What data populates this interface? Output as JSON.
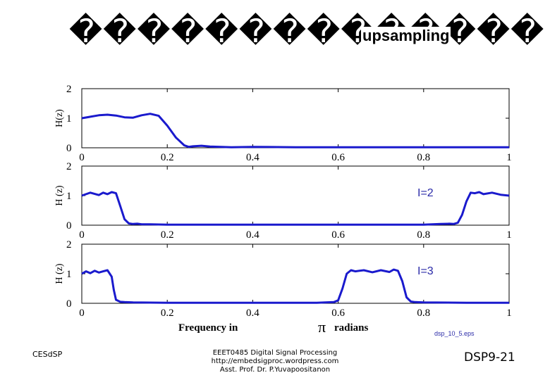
{
  "slide": {
    "title_glyphs": "��������������",
    "title_word": "upsampling",
    "footer_left": "CESdSP",
    "footer_center": [
      "EEET0485 Digital Signal Processing",
      "http://embedsigproc.wordpress.com",
      "Asst. Prof. Dr. P.Yuvapoositanon"
    ],
    "footer_right": "DSP9-21",
    "source_label": "dsp_10_5.eps"
  },
  "chart_data": [
    {
      "type": "line",
      "ylabel": "H(z)",
      "annotation": "",
      "xlim": [
        0,
        1
      ],
      "ylim": [
        0,
        2
      ],
      "xticks": [
        "0",
        "0.2",
        "0.4",
        "0.6",
        "0.8",
        "1"
      ],
      "yticks": [
        "0",
        "1",
        "2"
      ],
      "series_color": "#1a1acd",
      "x": [
        0,
        0.02,
        0.04,
        0.06,
        0.08,
        0.1,
        0.12,
        0.14,
        0.16,
        0.18,
        0.2,
        0.22,
        0.24,
        0.25,
        0.26,
        0.28,
        0.3,
        0.35,
        0.4,
        0.5,
        0.6,
        0.7,
        0.8,
        0.9,
        1.0
      ],
      "y": [
        1.0,
        1.05,
        1.1,
        1.12,
        1.09,
        1.03,
        1.02,
        1.1,
        1.15,
        1.08,
        0.75,
        0.35,
        0.08,
        0.03,
        0.05,
        0.07,
        0.04,
        0.02,
        0.03,
        0.02,
        0.02,
        0.02,
        0.02,
        0.02,
        0.02
      ]
    },
    {
      "type": "line",
      "ylabel": "H (z)",
      "annotation": "I=2",
      "xlim": [
        0,
        1
      ],
      "ylim": [
        0,
        2
      ],
      "xticks": [
        "0",
        "0.2",
        "0.4",
        "0.6",
        "0.8",
        "1"
      ],
      "yticks": [
        "0",
        "1",
        "2"
      ],
      "series_color": "#1a1acd",
      "x": [
        0,
        0.02,
        0.04,
        0.05,
        0.06,
        0.07,
        0.08,
        0.09,
        0.1,
        0.11,
        0.12,
        0.13,
        0.14,
        0.16,
        0.2,
        0.3,
        0.4,
        0.5,
        0.6,
        0.7,
        0.8,
        0.84,
        0.86,
        0.87,
        0.88,
        0.89,
        0.9,
        0.91,
        0.92,
        0.93,
        0.94,
        0.96,
        0.98,
        1.0
      ],
      "y": [
        1.0,
        1.1,
        1.02,
        1.1,
        1.05,
        1.12,
        1.08,
        0.65,
        0.2,
        0.06,
        0.04,
        0.05,
        0.03,
        0.03,
        0.02,
        0.02,
        0.02,
        0.02,
        0.02,
        0.02,
        0.02,
        0.04,
        0.05,
        0.04,
        0.08,
        0.35,
        0.8,
        1.1,
        1.08,
        1.12,
        1.05,
        1.1,
        1.03,
        1.0
      ]
    },
    {
      "type": "line",
      "ylabel": "H (z)",
      "annotation": "I=3",
      "xlim": [
        0,
        1
      ],
      "ylim": [
        0,
        2
      ],
      "xticks": [
        "0",
        "0.2",
        "0.4",
        "0.6",
        "0.8",
        "1"
      ],
      "yticks": [
        "0",
        "1",
        "2"
      ],
      "series_color": "#1a1acd",
      "x": [
        0,
        0.01,
        0.02,
        0.03,
        0.04,
        0.05,
        0.06,
        0.07,
        0.075,
        0.08,
        0.09,
        0.1,
        0.12,
        0.2,
        0.3,
        0.4,
        0.55,
        0.59,
        0.6,
        0.61,
        0.62,
        0.63,
        0.64,
        0.66,
        0.68,
        0.7,
        0.72,
        0.73,
        0.74,
        0.75,
        0.76,
        0.77,
        0.78,
        0.8,
        0.9,
        1.0
      ],
      "y": [
        1.0,
        1.08,
        1.02,
        1.1,
        1.04,
        1.08,
        1.12,
        0.9,
        0.45,
        0.12,
        0.05,
        0.04,
        0.03,
        0.02,
        0.02,
        0.02,
        0.02,
        0.04,
        0.1,
        0.5,
        1.0,
        1.12,
        1.08,
        1.12,
        1.05,
        1.12,
        1.06,
        1.14,
        1.1,
        0.75,
        0.2,
        0.06,
        0.04,
        0.03,
        0.02,
        0.02
      ]
    }
  ],
  "shared_xlabel_left": "Frequency in",
  "shared_xlabel_symbol": "π",
  "shared_xlabel_right": "radians"
}
